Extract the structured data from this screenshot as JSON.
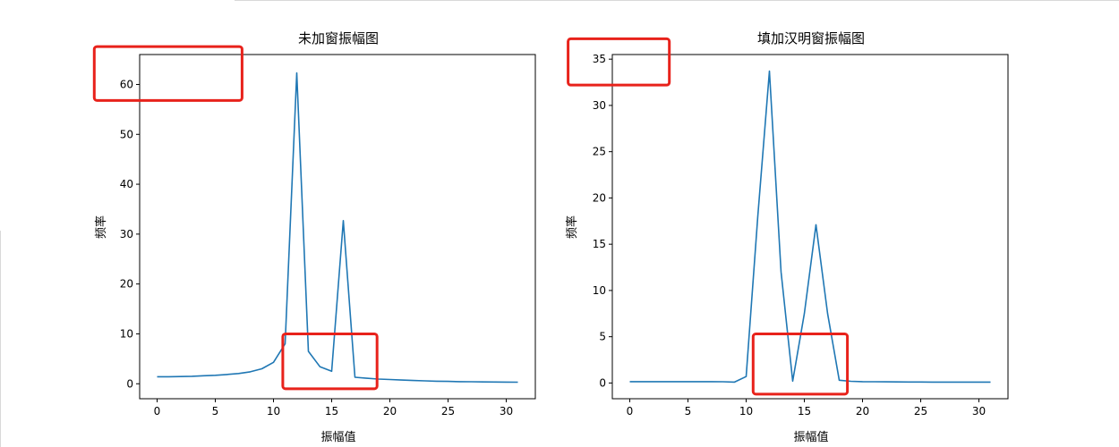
{
  "chart_data": [
    {
      "type": "line",
      "title": "未加窗振幅图",
      "xlabel": "振幅值",
      "ylabel": "频率",
      "xlim": [
        -1.5,
        32.5
      ],
      "ylim": [
        -3,
        66
      ],
      "xticks": [
        0,
        5,
        10,
        15,
        20,
        25,
        30
      ],
      "yticks": [
        0,
        10,
        20,
        30,
        40,
        50,
        60
      ],
      "grid": false,
      "series": [
        {
          "color": "#1f77b4",
          "x": [
            0,
            1,
            2,
            3,
            4,
            5,
            6,
            7,
            8,
            9,
            10,
            11,
            12,
            13,
            14,
            15,
            16,
            17,
            18,
            19,
            20,
            21,
            22,
            23,
            24,
            25,
            26,
            27,
            28,
            29,
            30,
            31
          ],
          "y": [
            1.4,
            1.4,
            1.45,
            1.5,
            1.6,
            1.7,
            1.85,
            2.05,
            2.4,
            3.0,
            4.3,
            8.0,
            62.3,
            6.5,
            3.4,
            2.5,
            32.7,
            1.3,
            1.1,
            0.95,
            0.85,
            0.75,
            0.65,
            0.58,
            0.52,
            0.47,
            0.43,
            0.4,
            0.37,
            0.35,
            0.33,
            0.32
          ]
        }
      ],
      "highlights": [
        {
          "x": [
            -5.4,
            7.3
          ],
          "y": [
            56.8,
            67.6
          ],
          "color": "#e8221b"
        },
        {
          "x": [
            10.8,
            18.9
          ],
          "y": [
            -1.0,
            10.0
          ],
          "color": "#e8221b"
        }
      ]
    },
    {
      "type": "line",
      "title": "填加汉明窗振幅图",
      "xlabel": "振幅值",
      "ylabel": "频率",
      "xlim": [
        -1.5,
        32.5
      ],
      "ylim": [
        -1.7,
        35.5
      ],
      "xticks": [
        0,
        5,
        10,
        15,
        20,
        25,
        30
      ],
      "yticks": [
        0,
        5,
        10,
        15,
        20,
        25,
        30,
        35
      ],
      "grid": false,
      "series": [
        {
          "color": "#1f77b4",
          "x": [
            0,
            1,
            2,
            3,
            4,
            5,
            6,
            7,
            8,
            9,
            10,
            11,
            12,
            13,
            14,
            15,
            16,
            17,
            18,
            19,
            20,
            21,
            22,
            23,
            24,
            25,
            26,
            27,
            28,
            29,
            30,
            31
          ],
          "y": [
            0.15,
            0.15,
            0.15,
            0.15,
            0.15,
            0.15,
            0.15,
            0.15,
            0.14,
            0.1,
            0.7,
            18.0,
            33.7,
            12.0,
            0.2,
            7.5,
            17.1,
            7.5,
            0.3,
            0.18,
            0.15,
            0.14,
            0.13,
            0.12,
            0.11,
            0.11,
            0.1,
            0.1,
            0.1,
            0.1,
            0.1,
            0.1
          ]
        }
      ],
      "highlights": [
        {
          "x": [
            -5.3,
            3.4
          ],
          "y": [
            32.2,
            37.2
          ],
          "color": "#e8221b"
        },
        {
          "x": [
            10.6,
            18.7
          ],
          "y": [
            -1.2,
            5.3
          ],
          "color": "#e8221b"
        }
      ]
    }
  ]
}
